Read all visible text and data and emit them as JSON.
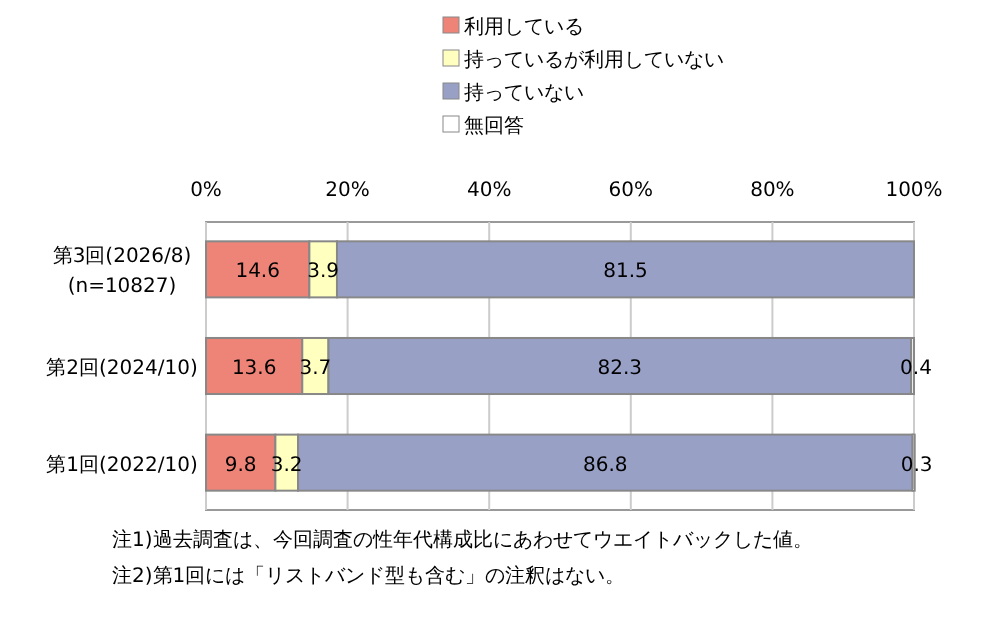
{
  "chart_data": {
    "type": "bar",
    "orientation": "horizontal",
    "stacked": true,
    "categories": [
      "第3回(2026/8)\n(n=10827)",
      "第2回(2024/10)",
      "第1回(2022/10)"
    ],
    "series": [
      {
        "name": "利用している",
        "color": "#ee8478",
        "values": [
          14.6,
          13.6,
          9.8
        ]
      },
      {
        "name": "持っているが利用していない",
        "color": "#ffffc0",
        "values": [
          3.9,
          3.7,
          3.2
        ]
      },
      {
        "name": "持っていない",
        "color": "#98a0c6",
        "values": [
          81.5,
          82.3,
          86.8
        ]
      },
      {
        "name": "無回答",
        "color": "#ffffff",
        "values": [
          null,
          0.4,
          0.3
        ]
      }
    ],
    "xlim": [
      0,
      100
    ],
    "xticks": [
      {
        "value": 0,
        "label": "0%"
      },
      {
        "value": 20,
        "label": "20%"
      },
      {
        "value": 40,
        "label": "40%"
      },
      {
        "value": 60,
        "label": "60%"
      },
      {
        "value": 80,
        "label": "80%"
      },
      {
        "value": 100,
        "label": "100%"
      }
    ],
    "grid": "x",
    "legend": "top",
    "data_labels": true,
    "annotations": [
      "注1)過去調査は、今回調査の性年代構成比にあわせてウエイトバックした値。",
      "注2)第1回には「リストバンド型も含む」の注釈はない。"
    ]
  }
}
